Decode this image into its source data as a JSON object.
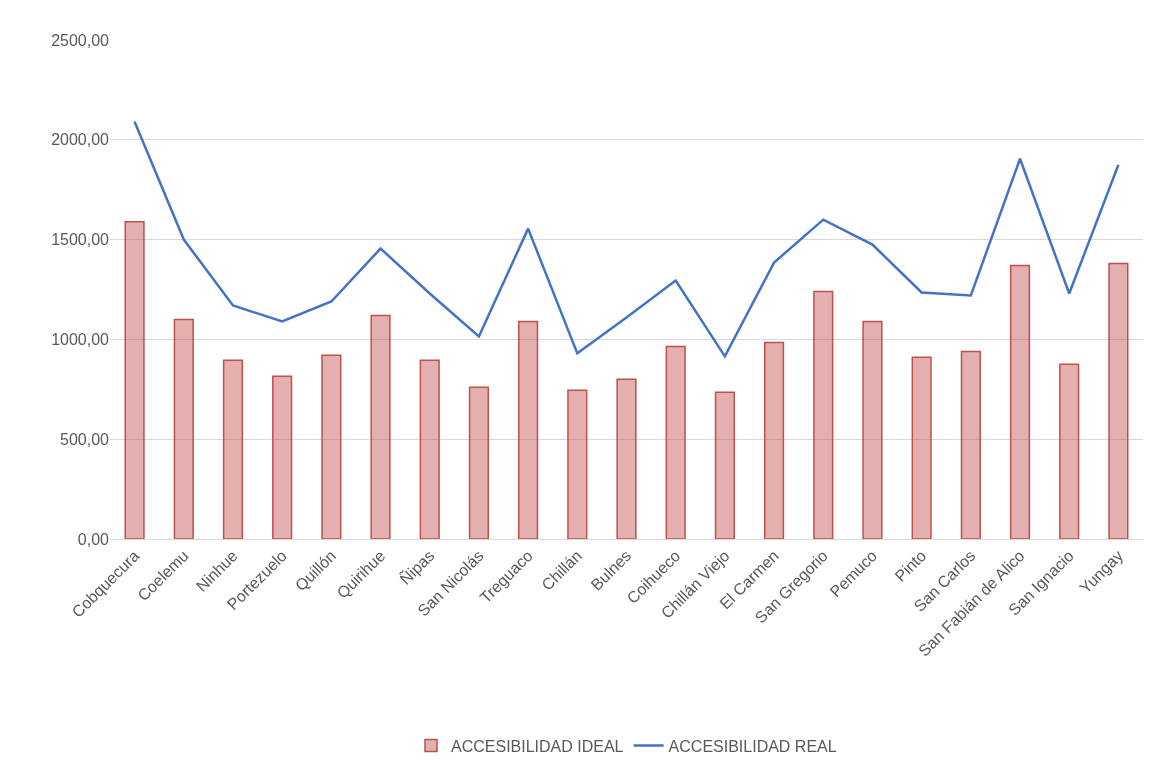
{
  "chart_data": {
    "type": "bar",
    "categories": [
      "Cobquecura",
      "Coelemu",
      "Ninhue",
      "Portezuelo",
      "Quillón",
      "Quirihue",
      "Ñipas",
      "San Nicolás",
      "Treguaco",
      "Chillán",
      "Bulnes",
      "Coihueco",
      "Chillán Viejo",
      "El Carmen",
      "San Gregorio",
      "Pemuco",
      "Pinto",
      "San Carlos",
      "San Fabián de Alico",
      "San Ignacio",
      "Yungay"
    ],
    "series": [
      {
        "name": "ACCESIBILIDAD IDEAL",
        "color": "#c0504d",
        "values": [
          1590,
          1100,
          895,
          815,
          920,
          1120,
          895,
          760,
          1090,
          745,
          800,
          965,
          735,
          985,
          1240,
          1090,
          910,
          940,
          1370,
          875,
          1380
        ]
      },
      {
        "name": "ACCESIBILIDAD REAL",
        "type": "line",
        "color": "#4472c4",
        "values": [
          2090,
          1500,
          1170,
          1090,
          1190,
          1455,
          1230,
          1015,
          1555,
          930,
          1110,
          1295,
          915,
          1385,
          1600,
          1475,
          1235,
          1220,
          1905,
          1230,
          1875
        ]
      }
    ],
    "ylim": [
      0,
      2500
    ],
    "yticks": [
      {
        "value": 0,
        "label": "0,00"
      },
      {
        "value": 500,
        "label": "500,00"
      },
      {
        "value": 1000,
        "label": "1000,00"
      },
      {
        "value": 1500,
        "label": "1500,00"
      },
      {
        "value": 2000,
        "label": "2000,00"
      },
      {
        "value": 2500,
        "label": "2500,00"
      }
    ],
    "grid": "y",
    "legend": "bottom",
    "marker": "none",
    "line_style": "solid"
  }
}
